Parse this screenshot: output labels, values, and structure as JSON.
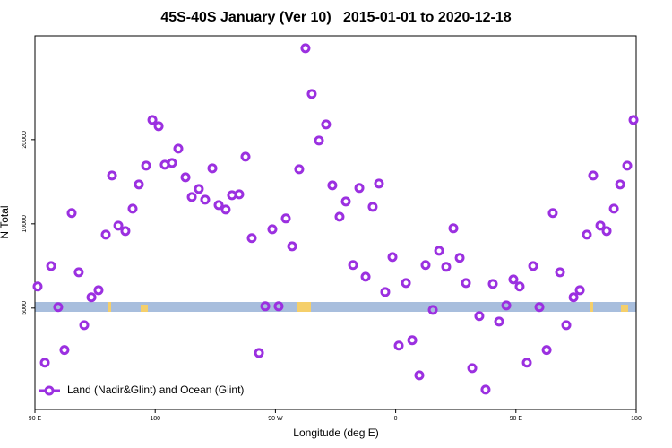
{
  "chart_data": {
    "type": "scatter",
    "title": "45S-40S January (Ver 10)   2015-01-01 to 2020-12-18",
    "x_label": "Longitude (deg E)",
    "y_label": "N Total",
    "log_y": true,
    "xlim": [
      90,
      540
    ],
    "ylim": [
      2170,
      47000
    ],
    "xticks": [
      {
        "value": 90,
        "label": "90 E"
      },
      180,
      {
        "value": 270,
        "label": "90 W"
      },
      {
        "value": 360,
        "label": "0"
      },
      {
        "value": 450,
        "label": "90 E"
      },
      {
        "value": 540,
        "label": "180"
      }
    ],
    "yticks": [
      5000,
      10000,
      20000
    ],
    "legend_position": "lower left",
    "series": [
      {
        "name": "Land (Nadir&Glint) and Ocean (Glint)",
        "color": "#9b30e0",
        "x": [
          92.0,
          97.4,
          102.1,
          107.4,
          112.1,
          117.5,
          122.8,
          126.9,
          132.3,
          137.6,
          143.0,
          147.7,
          152.4,
          157.7,
          163.1,
          167.8,
          173.2,
          177.9,
          182.6,
          187.2,
          192.6,
          197.3,
          202.7,
          207.4,
          212.7,
          217.4,
          222.8,
          227.5,
          232.8,
          237.5,
          242.9,
          247.6,
          252.3,
          257.7,
          262.4,
          267.7,
          272.4,
          277.8,
          282.5,
          287.8,
          292.5,
          297.2,
          302.6,
          307.9,
          312.6,
          318.0,
          322.7,
          328.1,
          332.8,
          337.5,
          342.8,
          347.5,
          352.2,
          357.6,
          362.3,
          367.7,
          372.4,
          377.7,
          382.4,
          387.8,
          392.5,
          397.8,
          403.2,
          407.9,
          412.6,
          417.3,
          422.6,
          427.3,
          432.7,
          437.4,
          442.8,
          448.1,
          452.8,
          458.2,
          462.9,
          467.6,
          473.0,
          477.6,
          483.0,
          487.7,
          493.1,
          497.8,
          503.1,
          507.8,
          513.2,
          517.9,
          523.3,
          528.0,
          533.3,
          538.0
        ],
        "values": [
          5970,
          3190,
          7070,
          5040,
          3540,
          10930,
          6715,
          4345,
          5465,
          5795,
          9150,
          14890,
          9855,
          9425,
          11335,
          13835,
          16145,
          23525,
          22345,
          16270,
          16510,
          18580,
          14670,
          12475,
          13330,
          12200,
          15800,
          11675,
          11250,
          12660,
          12755,
          17385,
          8890,
          3455,
          5075,
          9565,
          5075,
          10455,
          8315,
          15680,
          42430,
          29135,
          19850,
          22670,
          13730,
          10605,
          12025,
          7125,
          13435,
          6470,
          11505,
          13935,
          5710,
          7610,
          3670,
          6145,
          3835,
          2875,
          7125,
          4925,
          8015,
          7020,
          9640,
          7560,
          6145,
          3050,
          4680,
          2555,
          6100,
          4475,
          5110,
          6330,
          5970,
          3190,
          7070,
          5040,
          3540,
          10930,
          6715,
          4345,
          5465,
          5795,
          9150,
          14890,
          9855,
          9425,
          11335,
          13835,
          16145,
          23525
        ]
      }
    ]
  }
}
